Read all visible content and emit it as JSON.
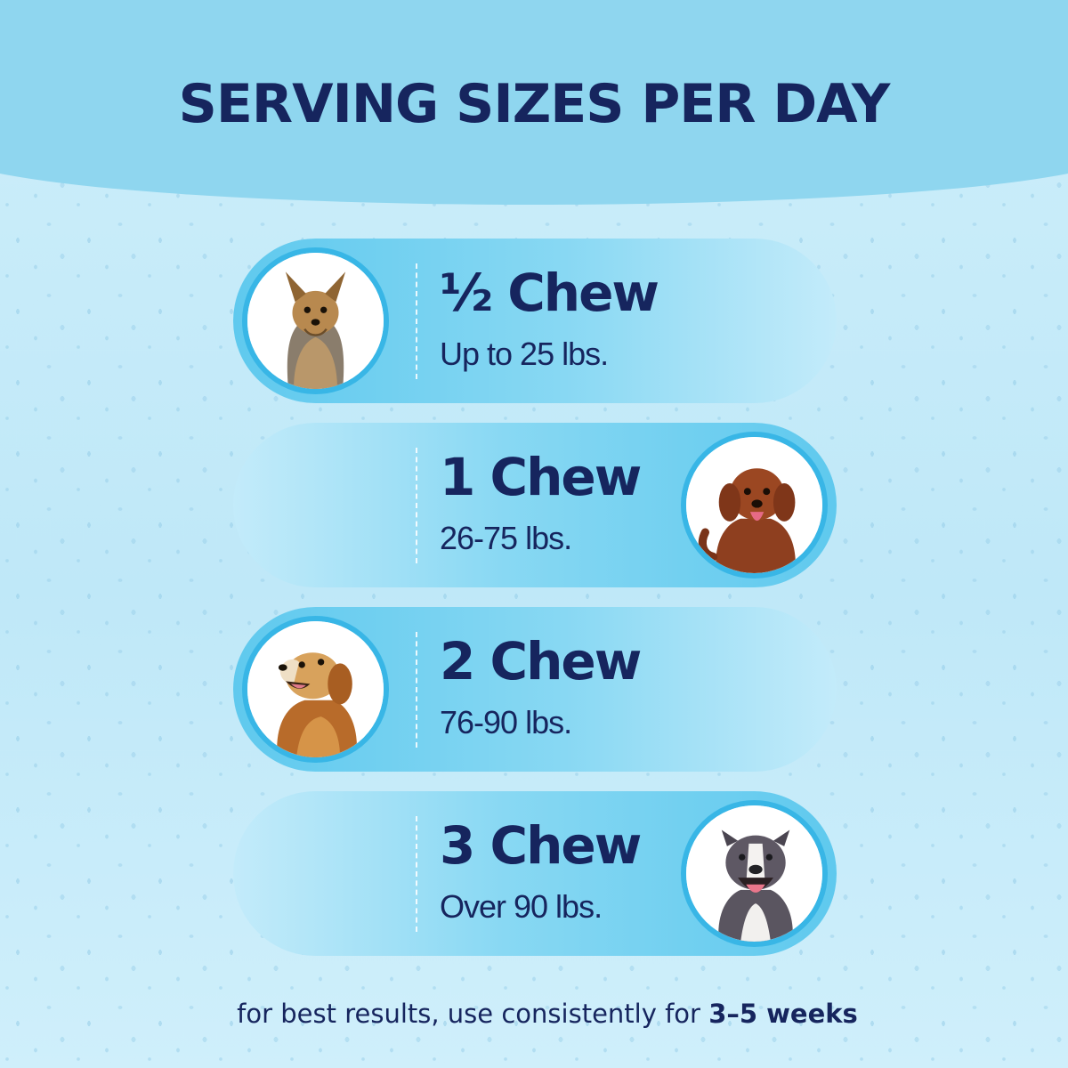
{
  "title": "SERVING SIZES PER DAY",
  "servings": [
    {
      "dose": "½ Chew",
      "weight": "Up to 25 lbs.",
      "dog_icon": "yorkshire-terrier-photo"
    },
    {
      "dose": "1 Chew",
      "weight": "26-75 lbs.",
      "dog_icon": "labradoodle-photo"
    },
    {
      "dose": "2 Chew",
      "weight": "76-90 lbs.",
      "dog_icon": "golden-retriever-photo"
    },
    {
      "dose": "3 Chew",
      "weight": "Over 90 lbs.",
      "dog_icon": "pit-bull-photo"
    }
  ],
  "footnote": {
    "prefix": "for best results, use consistently for ",
    "emphasis": "3–5 weeks"
  },
  "colors": {
    "navy": "#16255e",
    "accent_blue": "#38b6e6",
    "header_band": "#8fd6ef",
    "background": "#bfe8f8"
  }
}
